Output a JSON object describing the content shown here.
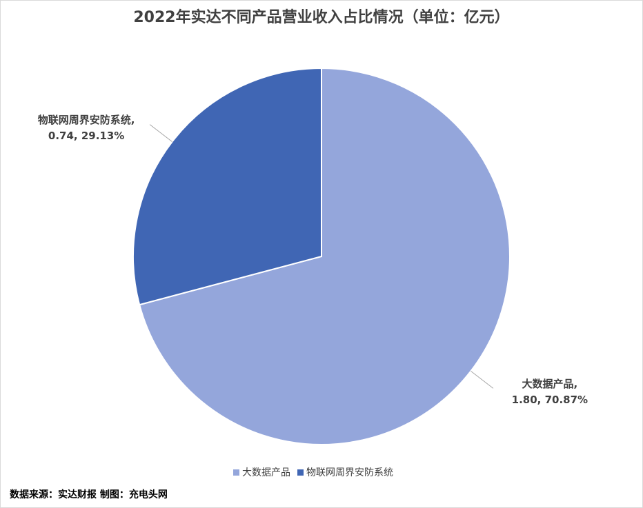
{
  "chart_data": {
    "type": "pie",
    "title": "2022年实达不同产品营业收入占比情况（单位：亿元）",
    "categories": [
      "大数据产品",
      "物联网周界安防系统"
    ],
    "values": [
      1.8,
      0.74
    ],
    "label_names": [
      "大数据产品,",
      "物联网周界安防系统,"
    ],
    "value_labels": [
      "1.80, 70.87%",
      "0.74, 29.13%"
    ],
    "colors": [
      "#94a6db",
      "#4066b4"
    ],
    "legend": "bottom",
    "source": "数据来源：实达财报  制图：充电头网"
  }
}
